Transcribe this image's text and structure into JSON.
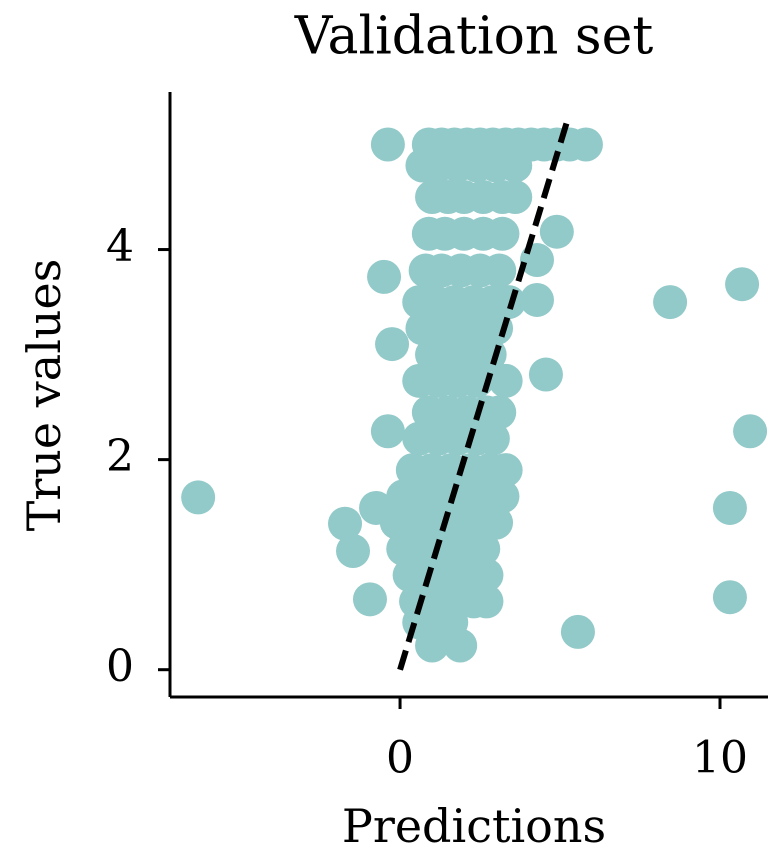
{
  "chart_data": {
    "type": "scatter",
    "title": "Validation set",
    "x_label": "Predictions",
    "y_label": "True values",
    "color": "#92c9c9",
    "radius": 17,
    "xlim": [
      -7.19,
      11.5
    ],
    "ylim": [
      -0.26,
      5.5
    ],
    "xticks": [
      0,
      10
    ],
    "yticks": [
      0,
      2,
      4
    ],
    "reference_line": {
      "x": [
        0,
        5.25
      ],
      "y": [
        0,
        5.25
      ],
      "color": "#000000"
    },
    "x": [
      -6.31,
      -0.38,
      -0.5,
      -0.25,
      -0.38,
      -1.72,
      -1.47,
      -0.94,
      -0.75,
      1.88,
      1.0,
      5.56,
      10.31,
      10.31,
      10.94,
      10.69,
      8.44,
      5.81,
      4.9,
      4.28,
      4.28,
      4.56,
      0.9,
      1.3,
      1.7,
      2.1,
      2.5,
      2.9,
      3.3,
      3.7,
      4.1,
      4.5,
      4.9,
      5.3,
      0.7,
      1.2,
      1.8,
      2.4,
      3.0,
      3.6,
      1.0,
      1.5,
      2.0,
      2.6,
      3.2,
      3.6,
      0.9,
      1.4,
      2.0,
      2.6,
      3.2,
      0.8,
      1.3,
      1.9,
      2.5,
      3.1,
      0.6,
      1.1,
      1.7,
      2.3,
      2.9,
      3.4,
      0.7,
      1.2,
      1.8,
      2.4,
      3.0,
      1.0,
      1.6,
      2.2,
      2.8,
      0.6,
      1.2,
      1.8,
      2.4,
      3.3,
      0.9,
      1.5,
      2.1,
      2.7,
      3.1,
      0.6,
      1.2,
      1.8,
      2.4,
      2.9,
      0.4,
      1.0,
      1.6,
      2.2,
      2.8,
      3.3,
      0.1,
      0.7,
      1.3,
      1.9,
      2.5,
      3.2,
      -0.1,
      0.5,
      1.1,
      1.7,
      2.3,
      3.0,
      0.1,
      0.7,
      1.3,
      1.9,
      2.6,
      0.3,
      0.9,
      1.5,
      2.1,
      2.7,
      0.5,
      1.1,
      1.7,
      2.3,
      2.7,
      0.6,
      1.2,
      1.6
    ],
    "y": [
      1.64,
      5.0,
      3.74,
      3.1,
      2.27,
      1.39,
      1.13,
      0.67,
      1.54,
      0.23,
      0.23,
      0.36,
      0.69,
      1.54,
      2.27,
      3.67,
      3.5,
      5.0,
      4.17,
      3.9,
      3.52,
      2.81,
      5.0,
      5.0,
      5.0,
      5.0,
      5.0,
      5.0,
      5.0,
      5.0,
      5.0,
      5.0,
      5.0,
      5.0,
      4.8,
      4.8,
      4.8,
      4.8,
      4.8,
      4.8,
      4.5,
      4.5,
      4.5,
      4.5,
      4.5,
      4.5,
      4.15,
      4.15,
      4.15,
      4.15,
      4.15,
      3.8,
      3.8,
      3.8,
      3.8,
      3.8,
      3.5,
      3.5,
      3.5,
      3.5,
      3.5,
      3.5,
      3.25,
      3.25,
      3.25,
      3.25,
      3.25,
      3.0,
      3.0,
      3.0,
      3.0,
      2.75,
      2.75,
      2.75,
      2.75,
      2.75,
      2.45,
      2.45,
      2.45,
      2.45,
      2.45,
      2.2,
      2.2,
      2.2,
      2.2,
      2.2,
      1.9,
      1.9,
      1.9,
      1.9,
      1.9,
      1.9,
      1.65,
      1.65,
      1.65,
      1.65,
      1.65,
      1.65,
      1.4,
      1.4,
      1.4,
      1.4,
      1.4,
      1.4,
      1.15,
      1.15,
      1.15,
      1.15,
      1.15,
      0.9,
      0.9,
      0.9,
      0.9,
      0.9,
      0.65,
      0.65,
      0.65,
      0.65,
      0.65,
      0.45,
      0.45,
      0.45
    ]
  }
}
